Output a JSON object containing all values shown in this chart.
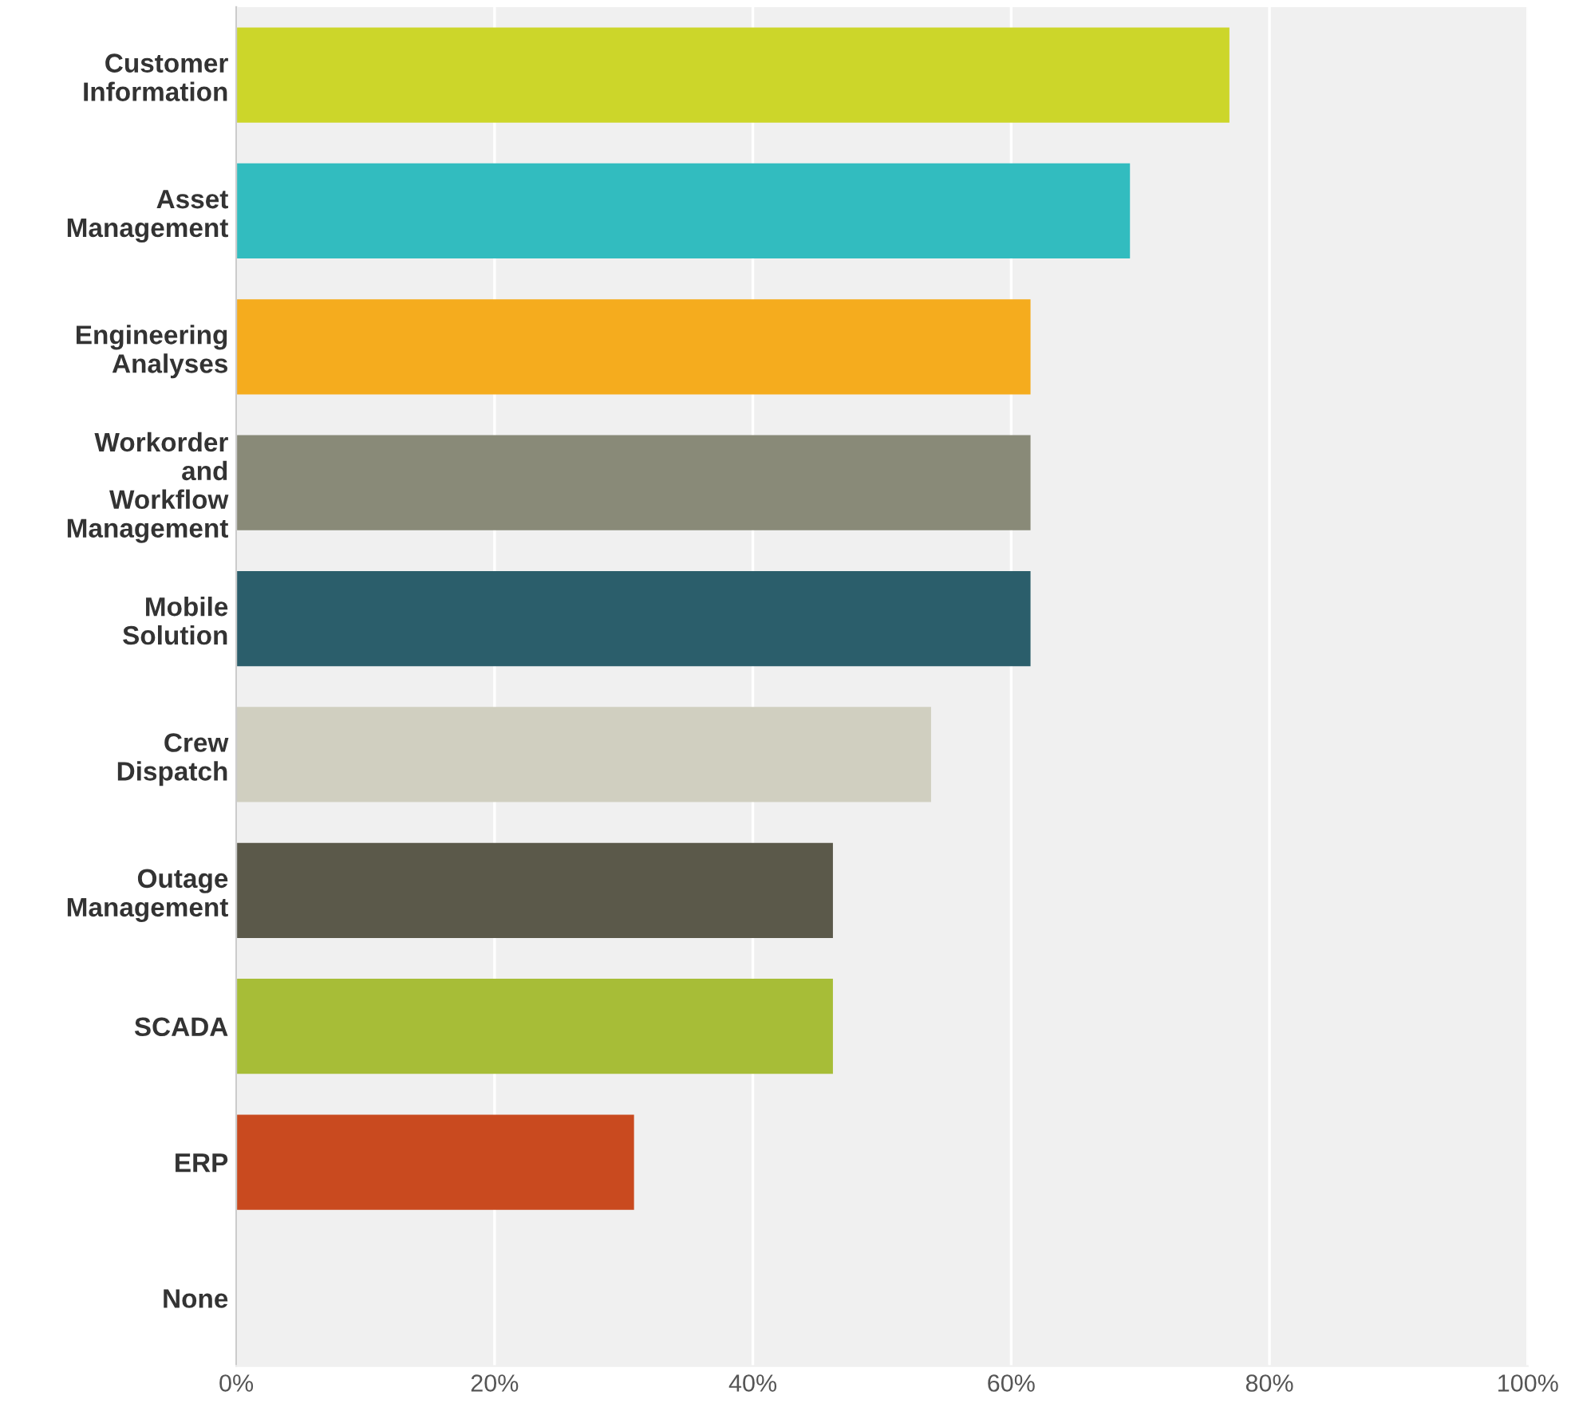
{
  "chart_data": {
    "type": "bar",
    "orientation": "horizontal",
    "categories": [
      "Customer\nInformation",
      "Asset\nManagement",
      "Engineering\nAnalyses",
      "Workorder\nand\nWorkflow\nManagement",
      "Mobile\nSolution",
      "Crew\nDispatch",
      "Outage\nManagement",
      "SCADA",
      "ERP",
      "None"
    ],
    "values": [
      76.9,
      69.2,
      61.5,
      61.5,
      61.5,
      53.8,
      46.2,
      46.2,
      30.8,
      0
    ],
    "colors": [
      "#ccd62a",
      "#32bcbf",
      "#f5ac1e",
      "#898a78",
      "#2b5e6b",
      "#d0cfc0",
      "#5b594a",
      "#a7bd37",
      "#c94a1f",
      "#999999"
    ],
    "xlim": [
      0,
      100
    ],
    "xticks": [
      {
        "value": 0,
        "label": "0%"
      },
      {
        "value": 20,
        "label": "20%"
      },
      {
        "value": 40,
        "label": "40%"
      },
      {
        "value": 60,
        "label": "60%"
      },
      {
        "value": 80,
        "label": "80%"
      },
      {
        "value": 100,
        "label": "100%"
      }
    ],
    "grid": "x",
    "legend": false
  }
}
